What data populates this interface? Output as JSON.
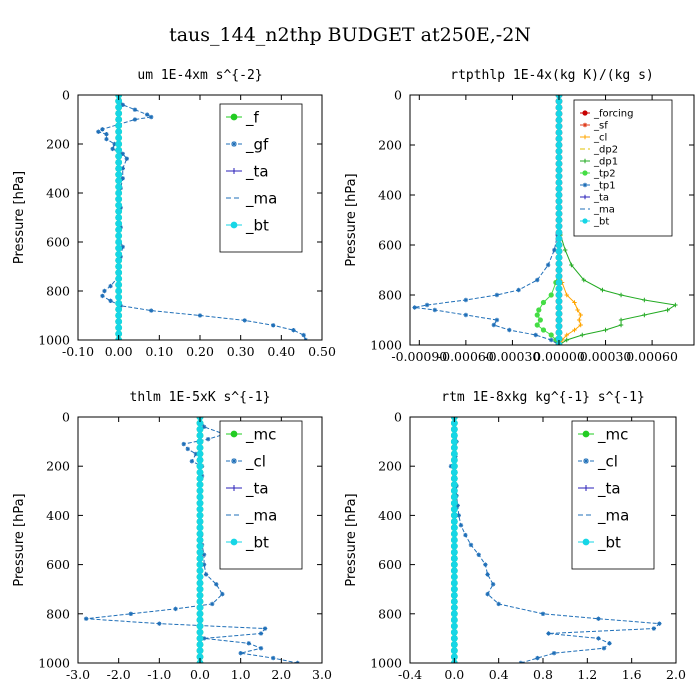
{
  "figure_title": "taus_144_n2thp  BUDGET at250E,-2N",
  "chart_data": [
    {
      "type": "line",
      "title": "um  1E-4xm s^{-2}",
      "ylabel": "Pressure [hPa]",
      "xlim": [
        -0.1,
        0.5
      ],
      "ylim": [
        1000,
        0
      ],
      "xticks": [
        "-0.10",
        "0.00",
        "0.10",
        "0.20",
        "0.30",
        "0.40",
        "0.50"
      ],
      "yticks": [
        "0",
        "200",
        "400",
        "600",
        "800",
        "1000"
      ],
      "legend_position": "upper-right",
      "series": [
        {
          "name": "_f",
          "color": "#22cc22",
          "marker": "circle",
          "dash": "",
          "y": [
            0,
            1000
          ],
          "x": [
            0.0,
            0.0
          ]
        },
        {
          "name": "_gf",
          "color": "#1f6fb8",
          "marker": "star",
          "dash": "4,2",
          "y": [
            0,
            20,
            40,
            60,
            80,
            90,
            100,
            120,
            140,
            150,
            160,
            180,
            200,
            220,
            240,
            260,
            300,
            340,
            380,
            420,
            460,
            500,
            540,
            580,
            620,
            660,
            700,
            740,
            780,
            800,
            820,
            840,
            860,
            880,
            900,
            920,
            940,
            960,
            980,
            1000
          ],
          "x": [
            0.0,
            0.002,
            0.01,
            0.04,
            0.07,
            0.08,
            0.04,
            0.0,
            -0.04,
            -0.05,
            -0.03,
            -0.03,
            -0.01,
            -0.015,
            0.01,
            0.02,
            0.01,
            0.01,
            0.005,
            0.0,
            0.005,
            0.0,
            0.005,
            0.0,
            0.01,
            0.005,
            0.0,
            0.0,
            -0.02,
            -0.035,
            -0.04,
            -0.02,
            0.005,
            0.08,
            0.2,
            0.31,
            0.38,
            0.43,
            0.455,
            0.46
          ]
        },
        {
          "name": "_ta",
          "color": "#2a1fb8",
          "marker": "plus",
          "dash": "",
          "y": [
            0,
            1000
          ],
          "x": [
            0.0,
            0.0
          ]
        },
        {
          "name": "_ma",
          "color": "#1f6fb8",
          "marker": "",
          "dash": "5,3",
          "y": [
            0,
            1000
          ],
          "x": [
            0.0,
            0.0
          ]
        },
        {
          "name": "_bt",
          "color": "#16d6e6",
          "marker": "circle",
          "dash": "",
          "y": [
            0,
            1000
          ],
          "x": [
            0.0,
            0.0
          ]
        }
      ]
    },
    {
      "type": "line",
      "title": "rtpthlp  1E-4x(kg K)/(kg s)",
      "ylabel": "Pressure [hPa]",
      "xlim": [
        -0.00096,
        0.00087
      ],
      "ylim": [
        1000,
        0
      ],
      "xticks": [
        "-0.00090",
        "-0.00060",
        "-0.00030",
        "0.00000",
        "0.00030",
        "0.00060"
      ],
      "yticks": [
        "0",
        "200",
        "400",
        "600",
        "800",
        "1000"
      ],
      "legend_position": "upper-right",
      "series": [
        {
          "name": "_forcing",
          "color": "#c80000",
          "marker": "circle",
          "dash": "",
          "y": [
            0,
            1000
          ],
          "x": [
            0,
            0
          ]
        },
        {
          "name": "_sf",
          "color": "#e04020",
          "marker": "star",
          "dash": "",
          "y": [
            0,
            1000
          ],
          "x": [
            0,
            0
          ]
        },
        {
          "name": "_cl",
          "color": "#ffa500",
          "marker": "plus",
          "dash": "",
          "y": [
            0,
            700,
            750,
            800,
            830,
            860,
            880,
            900,
            920,
            940,
            960,
            980,
            1000
          ],
          "x": [
            0,
            0,
            2e-05,
            5e-05,
            0.0001,
            0.00012,
            0.00014,
            0.00013,
            0.00014,
            0.0001,
            5e-05,
            2e-05,
            0
          ]
        },
        {
          "name": "_dp2",
          "color": "#e0c000",
          "marker": "",
          "dash": "5,3",
          "y": [
            0,
            1000
          ],
          "x": [
            0,
            0
          ]
        },
        {
          "name": "_dp1",
          "color": "#22aa22",
          "marker": "plus",
          "dash": "",
          "y": [
            0,
            500,
            560,
            620,
            680,
            740,
            780,
            800,
            820,
            840,
            860,
            880,
            900,
            920,
            940,
            960,
            980,
            1000
          ],
          "x": [
            0,
            0,
            1e-05,
            4e-05,
            8e-05,
            0.00016,
            0.00028,
            0.0004,
            0.00055,
            0.00075,
            0.0007,
            0.00055,
            0.0004,
            0.0004,
            0.0003,
            0.00015,
            5e-05,
            0
          ]
        },
        {
          "name": "_tp2",
          "color": "#44dd44",
          "marker": "circle",
          "dash": "",
          "y": [
            0,
            700,
            750,
            800,
            830,
            860,
            880,
            900,
            920,
            940,
            960,
            980,
            1000
          ],
          "x": [
            0,
            0,
            -2e-05,
            -5e-05,
            -0.0001,
            -0.00013,
            -0.00014,
            -0.00012,
            -0.00014,
            -0.0001,
            -5e-05,
            -2e-05,
            0
          ]
        },
        {
          "name": "_tp1",
          "color": "#1f6fb8",
          "marker": "star",
          "dash": "4,2",
          "y": [
            0,
            500,
            560,
            620,
            680,
            740,
            780,
            800,
            820,
            840,
            850,
            860,
            880,
            900,
            920,
            940,
            960,
            980,
            1000
          ],
          "x": [
            0,
            0,
            -1e-05,
            -3e-05,
            -7e-05,
            -0.00014,
            -0.00026,
            -0.0004,
            -0.0006,
            -0.00085,
            -0.00093,
            -0.0008,
            -0.0006,
            -0.0004,
            -0.00042,
            -0.00032,
            -0.00015,
            -5e-05,
            0
          ]
        },
        {
          "name": "_ta",
          "color": "#2a1fb8",
          "marker": "plus",
          "dash": "",
          "y": [
            0,
            1000
          ],
          "x": [
            0,
            0
          ]
        },
        {
          "name": "_ma",
          "color": "#1f6fb8",
          "marker": "",
          "dash": "5,3",
          "y": [
            0,
            1000
          ],
          "x": [
            0,
            0
          ]
        },
        {
          "name": "_bt",
          "color": "#16d6e6",
          "marker": "circle",
          "dash": "",
          "y": [
            0,
            1000
          ],
          "x": [
            0,
            0
          ]
        }
      ]
    },
    {
      "type": "line",
      "title": "thlm  1E-5xK s^{-1}",
      "ylabel": "Pressure [hPa]",
      "xlim": [
        -3.0,
        3.0
      ],
      "ylim": [
        1000,
        0
      ],
      "xticks": [
        "-3.0",
        "-2.0",
        "-1.0",
        "0.0",
        "1.0",
        "2.0",
        "3.0"
      ],
      "yticks": [
        "0",
        "200",
        "400",
        "600",
        "800",
        "1000"
      ],
      "legend_position": "upper-right",
      "series": [
        {
          "name": "_mc",
          "color": "#22cc22",
          "marker": "circle",
          "dash": "",
          "y": [
            0,
            1000
          ],
          "x": [
            0.0,
            0.0
          ]
        },
        {
          "name": "_cl",
          "color": "#1f6fb8",
          "marker": "star",
          "dash": "4,2",
          "y": [
            0,
            40,
            70,
            90,
            110,
            130,
            150,
            180,
            200,
            240,
            300,
            360,
            400,
            440,
            480,
            520,
            560,
            600,
            640,
            680,
            720,
            760,
            780,
            800,
            820,
            840,
            860,
            880,
            900,
            920,
            940,
            960,
            980,
            1000
          ],
          "x": [
            0.0,
            0.1,
            0.6,
            0.2,
            -0.4,
            -0.3,
            -0.1,
            -0.2,
            0.05,
            0.05,
            0.02,
            0.0,
            0.03,
            0.0,
            0.03,
            0.05,
            0.1,
            0.1,
            0.15,
            0.4,
            0.55,
            0.3,
            -0.6,
            -1.7,
            -2.8,
            -1.0,
            1.6,
            1.5,
            0.1,
            1.2,
            1.5,
            1.0,
            1.8,
            2.4
          ]
        },
        {
          "name": "_ta",
          "color": "#2a1fb8",
          "marker": "plus",
          "dash": "",
          "y": [
            0,
            1000
          ],
          "x": [
            0.0,
            0.0
          ]
        },
        {
          "name": "_ma",
          "color": "#1f6fb8",
          "marker": "",
          "dash": "5,3",
          "y": [
            0,
            1000
          ],
          "x": [
            0.0,
            0.0
          ]
        },
        {
          "name": "_bt",
          "color": "#16d6e6",
          "marker": "circle",
          "dash": "",
          "y": [
            0,
            1000
          ],
          "x": [
            0.0,
            0.0
          ]
        }
      ]
    },
    {
      "type": "line",
      "title": "rtm  1E-8xkg kg^{-1} s^{-1}",
      "ylabel": "Pressure [hPa]",
      "xlim": [
        -0.4,
        2.0
      ],
      "ylim": [
        1000,
        0
      ],
      "xticks": [
        "-0.4",
        "0.0",
        "0.4",
        "0.8",
        "1.2",
        "1.6",
        "2.0"
      ],
      "yticks": [
        "0",
        "200",
        "400",
        "600",
        "800",
        "1000"
      ],
      "legend_position": "upper-right",
      "series": [
        {
          "name": "_mc",
          "color": "#22cc22",
          "marker": "circle",
          "dash": "",
          "y": [
            0,
            1000
          ],
          "x": [
            0.0,
            0.0
          ]
        },
        {
          "name": "_cl",
          "color": "#1f6fb8",
          "marker": "star",
          "dash": "4,2",
          "y": [
            0,
            100,
            160,
            200,
            240,
            280,
            320,
            360,
            400,
            440,
            480,
            520,
            560,
            600,
            640,
            680,
            720,
            760,
            800,
            820,
            840,
            860,
            880,
            900,
            920,
            940,
            960,
            980,
            1000
          ],
          "x": [
            0.0,
            0.02,
            0.01,
            -0.03,
            0.0,
            0.02,
            0.02,
            0.03,
            0.04,
            0.06,
            0.1,
            0.15,
            0.22,
            0.28,
            0.3,
            0.35,
            0.3,
            0.4,
            0.8,
            1.3,
            1.85,
            1.8,
            0.85,
            1.3,
            1.4,
            1.35,
            0.9,
            0.75,
            0.6
          ]
        },
        {
          "name": "_ta",
          "color": "#2a1fb8",
          "marker": "plus",
          "dash": "",
          "y": [
            0,
            1000
          ],
          "x": [
            0.0,
            0.0
          ]
        },
        {
          "name": "_ma",
          "color": "#1f6fb8",
          "marker": "",
          "dash": "5,3",
          "y": [
            0,
            1000
          ],
          "x": [
            0.0,
            0.0
          ]
        },
        {
          "name": "_bt",
          "color": "#16d6e6",
          "marker": "circle",
          "dash": "",
          "y": [
            0,
            1000
          ],
          "x": [
            0.0,
            0.0
          ]
        }
      ]
    }
  ]
}
